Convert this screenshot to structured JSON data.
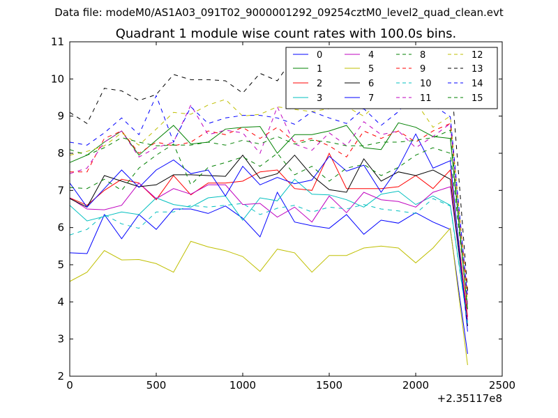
{
  "header": {
    "file_label": "Data file: modeM0/AS1A03_091T02_9000001292_09254cztM0_level2_quad_clean.evt"
  },
  "chart_data": {
    "type": "line",
    "title": "Quadrant 1 module wise count rates with 100.0s bins.",
    "xlabel": "",
    "ylabel": "",
    "x_offset_label": "+2.35117e8",
    "xlim": [
      0,
      2500
    ],
    "ylim": [
      2,
      11
    ],
    "xticks": [
      0,
      500,
      1000,
      1500,
      2000,
      2500
    ],
    "yticks": [
      2,
      3,
      4,
      5,
      6,
      7,
      8,
      9,
      10,
      11
    ],
    "grid": false,
    "legend_location": "upper-right",
    "x": [
      0,
      100,
      200,
      300,
      400,
      500,
      600,
      700,
      800,
      900,
      1000,
      1100,
      1200,
      1300,
      1400,
      1500,
      1600,
      1700,
      1800,
      1900,
      2000,
      2100,
      2200,
      2300
    ],
    "series": [
      {
        "name": "0",
        "color": "#0000ff",
        "dash": "solid",
        "values": [
          5.32,
          5.3,
          6.35,
          5.7,
          6.35,
          5.95,
          6.5,
          6.5,
          6.38,
          6.58,
          6.25,
          5.75,
          6.95,
          6.15,
          6.05,
          5.98,
          6.35,
          5.82,
          6.2,
          6.12,
          6.4,
          6.15,
          5.95,
          2.6
        ]
      },
      {
        "name": "1",
        "color": "#008000",
        "dash": "solid",
        "values": [
          7.75,
          7.95,
          8.3,
          8.6,
          7.95,
          8.35,
          8.75,
          8.25,
          8.3,
          8.65,
          8.7,
          8.72,
          8.0,
          8.5,
          8.5,
          8.6,
          8.75,
          8.15,
          8.1,
          8.82,
          8.7,
          8.45,
          8.4,
          3.8
        ]
      },
      {
        "name": "2",
        "color": "#ff0000",
        "dash": "solid",
        "values": [
          6.8,
          6.6,
          7.0,
          7.3,
          7.2,
          6.75,
          7.4,
          6.88,
          7.2,
          7.2,
          7.25,
          7.5,
          7.55,
          7.05,
          7.0,
          8.0,
          7.05,
          7.05,
          7.05,
          7.1,
          7.4,
          7.05,
          7.55,
          3.6
        ]
      },
      {
        "name": "3",
        "color": "#00bfbf",
        "dash": "solid",
        "values": [
          6.6,
          6.18,
          6.3,
          6.42,
          6.35,
          6.8,
          6.62,
          6.55,
          6.8,
          6.85,
          6.2,
          6.8,
          6.72,
          7.3,
          6.9,
          6.88,
          6.75,
          6.55,
          6.9,
          6.98,
          6.62,
          6.85,
          6.6,
          3.45
        ]
      },
      {
        "name": "4",
        "color": "#bf00bf",
        "dash": "solid",
        "values": [
          6.8,
          6.5,
          6.48,
          6.6,
          7.2,
          6.78,
          7.05,
          6.9,
          7.15,
          7.15,
          6.62,
          6.65,
          6.28,
          6.55,
          6.15,
          6.85,
          6.4,
          6.95,
          6.75,
          6.7,
          6.55,
          6.95,
          7.1,
          3.5
        ]
      },
      {
        "name": "5",
        "color": "#bfbf00",
        "dash": "solid",
        "values": [
          4.55,
          4.8,
          5.38,
          5.13,
          5.14,
          5.03,
          4.8,
          5.63,
          5.48,
          5.38,
          5.22,
          4.82,
          5.42,
          5.32,
          4.8,
          5.25,
          5.25,
          5.45,
          5.5,
          5.45,
          5.05,
          5.45,
          5.98,
          2.3
        ]
      },
      {
        "name": "6",
        "color": "#000000",
        "dash": "solid",
        "values": [
          6.78,
          6.55,
          7.4,
          7.25,
          7.1,
          7.15,
          7.42,
          7.42,
          7.4,
          7.38,
          7.95,
          7.32,
          7.45,
          7.95,
          7.4,
          7.02,
          6.95,
          7.85,
          7.25,
          7.5,
          7.4,
          7.55,
          7.3,
          3.35
        ]
      },
      {
        "name": "7",
        "color": "#0000ff",
        "dash": "solid",
        "values": [
          7.2,
          6.55,
          7.05,
          7.55,
          7.08,
          7.55,
          7.82,
          7.45,
          7.55,
          6.85,
          7.65,
          7.15,
          7.35,
          7.18,
          7.28,
          7.92,
          7.52,
          7.68,
          6.95,
          7.62,
          8.52,
          7.6,
          7.8,
          3.2
        ]
      },
      {
        "name": "8",
        "color": "#008000",
        "dash": "dashed",
        "values": [
          7.08,
          7.05,
          7.3,
          7.0,
          7.6,
          7.95,
          8.25,
          7.15,
          7.62,
          7.75,
          7.9,
          7.65,
          8.0,
          7.42,
          7.65,
          7.25,
          7.6,
          7.7,
          7.4,
          7.62,
          7.95,
          8.15,
          8.0,
          3.9
        ]
      },
      {
        "name": "9",
        "color": "#ff0000",
        "dash": "dashed",
        "values": [
          7.5,
          7.5,
          8.4,
          8.6,
          8.0,
          8.3,
          8.2,
          8.3,
          8.6,
          8.5,
          8.7,
          8.4,
          8.7,
          8.3,
          8.4,
          8.2,
          7.9,
          8.6,
          8.4,
          8.6,
          8.3,
          8.6,
          8.8,
          4.2
        ]
      },
      {
        "name": "10",
        "color": "#00bfbf",
        "dash": "dashed",
        "values": [
          5.8,
          5.95,
          6.35,
          6.1,
          5.98,
          6.42,
          6.42,
          6.6,
          6.55,
          6.6,
          6.65,
          6.35,
          6.52,
          6.6,
          6.42,
          6.55,
          6.5,
          6.62,
          6.5,
          6.45,
          6.38,
          6.78,
          6.58,
          3.4
        ]
      },
      {
        "name": "11",
        "color": "#bf00bf",
        "dash": "dashed",
        "values": [
          7.45,
          7.6,
          8.3,
          8.6,
          7.9,
          8.15,
          8.3,
          9.3,
          8.5,
          8.62,
          8.55,
          8.0,
          9.25,
          8.25,
          8.08,
          8.55,
          8.2,
          8.85,
          8.5,
          8.6,
          8.15,
          8.45,
          8.8,
          3.9
        ]
      },
      {
        "name": "12",
        "color": "#bfbf00",
        "dash": "dashed",
        "values": [
          7.95,
          8.05,
          8.2,
          8.55,
          8.22,
          8.65,
          9.1,
          9.05,
          9.3,
          9.45,
          9.0,
          9.05,
          9.25,
          9.18,
          9.12,
          9.2,
          9.25,
          9.0,
          9.45,
          9.45,
          9.38,
          8.7,
          9.0,
          4.0
        ]
      },
      {
        "name": "13",
        "color": "#000000",
        "dash": "dashed",
        "values": [
          9.1,
          8.8,
          9.75,
          9.68,
          9.42,
          9.58,
          10.12,
          9.98,
          9.98,
          9.95,
          9.62,
          10.15,
          9.95,
          10.62,
          10.12,
          10.12,
          9.55,
          9.95,
          9.88,
          10.12,
          10.12,
          10.15,
          10.32,
          4.3
        ]
      },
      {
        "name": "14",
        "color": "#0000ff",
        "dash": "dashed",
        "values": [
          8.3,
          8.22,
          8.55,
          8.95,
          8.5,
          9.55,
          8.3,
          9.25,
          8.8,
          8.95,
          9.02,
          9.02,
          8.95,
          8.78,
          9.12,
          8.95,
          8.8,
          9.2,
          8.75,
          9.12,
          9.7,
          9.3,
          8.98,
          4.1
        ]
      },
      {
        "name": "15",
        "color": "#008000",
        "dash": "dashed",
        "values": [
          8.1,
          7.95,
          8.15,
          8.42,
          8.3,
          8.2,
          8.22,
          8.22,
          8.3,
          8.22,
          8.35,
          8.25,
          8.45,
          8.25,
          8.35,
          8.3,
          8.2,
          8.2,
          8.3,
          8.3,
          8.35,
          8.42,
          8.62,
          3.75
        ]
      }
    ]
  }
}
